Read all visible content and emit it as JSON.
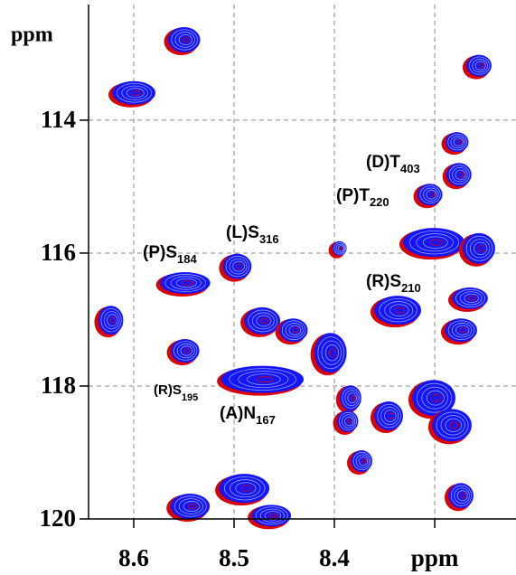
{
  "chart_data": {
    "type": "scatter",
    "y_label": "ppm",
    "xlim": [
      8.645,
      8.219
    ],
    "ylim": [
      112.26,
      120
    ],
    "xticks": [
      8.6,
      8.5,
      8.4,
      {
        "value": 8.3,
        "label": "ppm"
      }
    ],
    "yticks": [
      114,
      116,
      118,
      120
    ],
    "grid": true,
    "colors": {
      "contour": "#1515f5",
      "underlay": "#e00000"
    },
    "x": [
      8.55,
      8.6,
      8.256,
      8.278,
      8.276,
      8.305,
      8.301,
      8.256,
      8.497,
      8.549,
      8.395,
      8.623,
      8.472,
      8.441,
      8.337,
      8.265,
      8.274,
      8.549,
      8.472,
      8.404,
      8.384,
      8.387,
      8.373,
      8.346,
      8.301,
      8.283,
      8.49,
      8.274,
      8.544,
      8.463
    ],
    "values": [
      112.79,
      113.59,
      113.18,
      114.33,
      114.82,
      115.12,
      115.84,
      115.93,
      116.2,
      116.45,
      115.93,
      117.01,
      117.02,
      117.16,
      116.86,
      116.68,
      117.16,
      117.47,
      117.9,
      117.5,
      118.18,
      118.53,
      119.13,
      118.45,
      118.18,
      118.59,
      119.54,
      119.65,
      119.81,
      119.95
    ],
    "annotations": [
      {
        "text": "(D)T",
        "sub": "403"
      },
      {
        "text": "(P)T",
        "sub": "220"
      },
      {
        "text": "(L)S",
        "sub": "316"
      },
      {
        "text": "(P)S",
        "sub": "184"
      },
      {
        "text": "(R)S",
        "sub": "210"
      },
      {
        "text": "(R)S",
        "sub": "195"
      },
      {
        "text": "(A)N",
        "sub": "167"
      }
    ]
  }
}
